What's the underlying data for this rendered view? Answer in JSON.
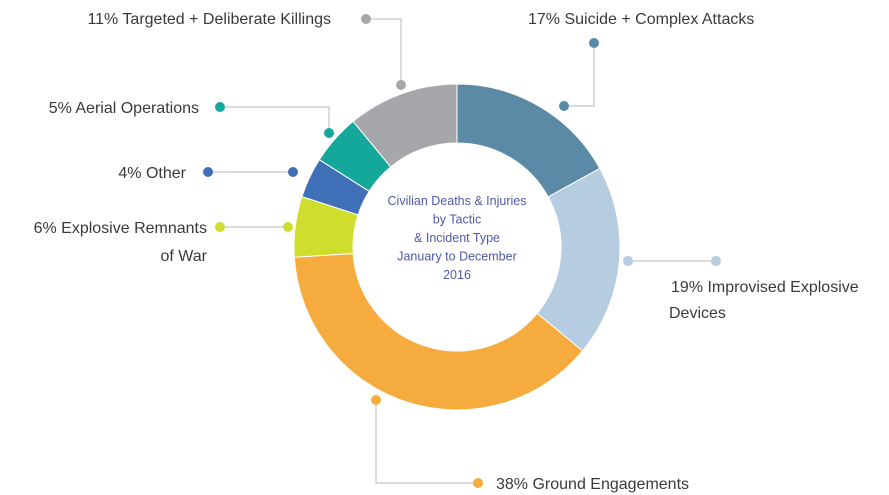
{
  "chart_data": {
    "type": "pie",
    "center_text": [
      "Civilian Deaths & Injuries",
      "by Tactic",
      "& Incident Type",
      "January to December",
      "2016"
    ],
    "slices": [
      {
        "label_lines": [
          "17% Suicide + Complex Attacks"
        ],
        "value": 17,
        "color": "#5b8aa6"
      },
      {
        "label_lines": [
          "19% Improvised Explosive",
          "Devices"
        ],
        "value": 19,
        "color": "#b6cce0"
      },
      {
        "label_lines": [
          "38% Ground Engagements"
        ],
        "value": 38,
        "color": "#f5ab3e"
      },
      {
        "label_lines": [
          "6% Explosive Remnants",
          "of War"
        ],
        "value": 6,
        "color": "#cfdd2c"
      },
      {
        "label_lines": [
          "4% Other"
        ],
        "value": 4,
        "color": "#3f70b7"
      },
      {
        "label_lines": [
          "5% Aerial Operations"
        ],
        "value": 5,
        "color": "#14a89b"
      },
      {
        "label_lines": [
          "11% Targeted + Deliberate Killings"
        ],
        "value": 11,
        "color": "#a6a7aa"
      }
    ],
    "legend": "none",
    "grid": false
  }
}
